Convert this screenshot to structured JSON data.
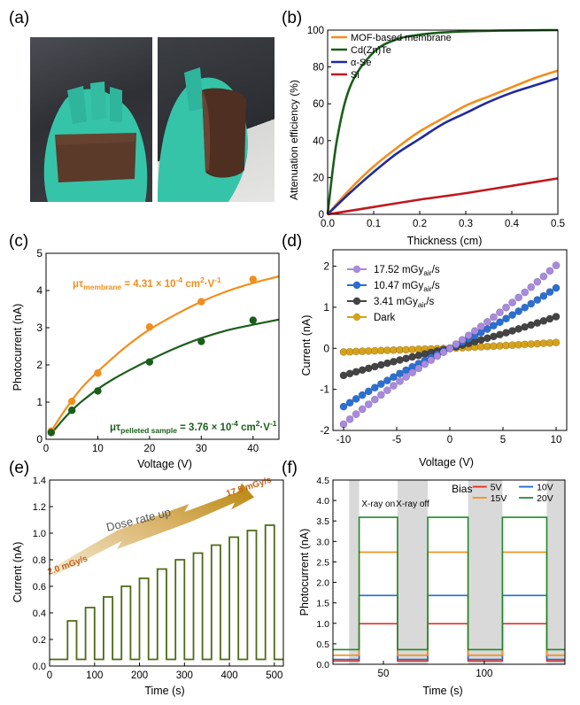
{
  "panels": {
    "a": {
      "label": "(a)"
    },
    "b": {
      "label": "(b)"
    },
    "c": {
      "label": "(c)"
    },
    "d": {
      "label": "(d)"
    },
    "e": {
      "label": "(e)"
    },
    "f": {
      "label": "(f)"
    }
  },
  "chart_data": [
    {
      "id": "b",
      "type": "line",
      "xlabel": "Thickness (cm)",
      "ylabel": "Attenuation efficiency (%)",
      "xlim": [
        0,
        0.5
      ],
      "ylim": [
        0,
        100
      ],
      "xticks": [
        "0.0",
        "0.1",
        "0.2",
        "0.3",
        "0.4",
        "0.5"
      ],
      "yticks": [
        "0",
        "20",
        "40",
        "60",
        "80",
        "100"
      ],
      "legend_position": "top-left",
      "series": [
        {
          "name": "MOF-based membrane",
          "color": "#f28e1c",
          "x": [
            0,
            0.05,
            0.1,
            0.15,
            0.2,
            0.25,
            0.3,
            0.35,
            0.4,
            0.45,
            0.5
          ],
          "y": [
            0,
            14,
            26,
            36,
            45,
            52,
            59,
            64,
            69,
            74,
            78
          ]
        },
        {
          "name": "Cd(Zn)Te",
          "color": "#1a5e1a",
          "x": [
            0,
            0.02,
            0.05,
            0.1,
            0.15,
            0.2,
            0.25,
            0.3,
            0.35,
            0.4,
            0.45,
            0.5
          ],
          "y": [
            0,
            40,
            70,
            88,
            95,
            97.5,
            98.7,
            99.3,
            99.6,
            99.8,
            99.9,
            100
          ]
        },
        {
          "name": "α-Se",
          "color": "#1f2a9e",
          "x": [
            0,
            0.05,
            0.1,
            0.15,
            0.2,
            0.25,
            0.3,
            0.35,
            0.4,
            0.45,
            0.5
          ],
          "y": [
            0,
            12,
            23,
            33,
            41,
            49,
            55,
            61,
            66,
            70,
            74
          ]
        },
        {
          "name": "Si",
          "color": "#c0191f",
          "x": [
            0,
            0.1,
            0.2,
            0.3,
            0.4,
            0.5
          ],
          "y": [
            0,
            4,
            8,
            11.5,
            15.5,
            19.5
          ]
        }
      ]
    },
    {
      "id": "c",
      "type": "scatter",
      "xlabel": "Voltage (V)",
      "ylabel": "Photocurrent (nA)",
      "xlim": [
        0,
        45
      ],
      "ylim": [
        0,
        5
      ],
      "xticks": [
        "0",
        "10",
        "20",
        "30",
        "40"
      ],
      "yticks": [
        "0",
        "1",
        "2",
        "3",
        "4",
        "5"
      ],
      "annotations": [
        {
          "prefix": "μτ",
          "sub": "membrane",
          "rest": " = 4.31 × 10",
          "sup": "-4",
          "unit": " cm",
          "unit_sup": "2",
          "unit_rest": "·V",
          "unit_sup2": "-1",
          "color": "#f28e1c"
        },
        {
          "prefix": "μτ",
          "sub": "pelleted sample",
          "rest": " = 3.76 × 10",
          "sup": "-4",
          "unit": " cm",
          "unit_sup": "2",
          "unit_rest": "·V",
          "unit_sup2": "-1",
          "color": "#1a5e1a"
        }
      ],
      "series": [
        {
          "name": "membrane",
          "color": "#f28e1c",
          "x": [
            1,
            5,
            10,
            20,
            30,
            40
          ],
          "y": [
            0.22,
            1.02,
            1.78,
            3.02,
            3.7,
            4.3
          ],
          "fit_x": [
            1,
            3,
            5,
            7,
            10,
            13,
            16,
            20,
            25,
            30,
            35,
            40,
            45
          ],
          "fit_y": [
            0.22,
            0.65,
            1.05,
            1.4,
            1.82,
            2.2,
            2.55,
            2.95,
            3.35,
            3.7,
            3.98,
            4.2,
            4.38
          ]
        },
        {
          "name": "pelleted sample",
          "color": "#1a5e1a",
          "x": [
            1,
            5,
            10,
            20,
            30,
            40
          ],
          "y": [
            0.18,
            0.78,
            1.3,
            2.08,
            2.63,
            3.2
          ],
          "fit_x": [
            1,
            3,
            5,
            7,
            10,
            13,
            16,
            20,
            25,
            30,
            35,
            40,
            45
          ],
          "fit_y": [
            0.15,
            0.48,
            0.78,
            1.03,
            1.35,
            1.62,
            1.85,
            2.13,
            2.45,
            2.72,
            2.93,
            3.08,
            3.22
          ]
        }
      ]
    },
    {
      "id": "d",
      "type": "line",
      "xlabel": "Voltage (V)",
      "ylabel": "Current (nA)",
      "xlim": [
        -11,
        11
      ],
      "ylim": [
        -2,
        2.4
      ],
      "xticks": [
        "-10",
        "-5",
        "0",
        "5",
        "10"
      ],
      "yticks": [
        "-2",
        "-1",
        "0",
        "1",
        "2"
      ],
      "legend_position": "top-left",
      "series": [
        {
          "name": "17.52 mGy",
          "sub": "air",
          "suffix": "/s",
          "color": "#a98adf",
          "x_min": -10,
          "x_max": 10,
          "y_min": -1.85,
          "y_max": 2.02
        },
        {
          "name": "10.47 mGy",
          "sub": "air",
          "suffix": "/s",
          "color": "#2a6fd4",
          "x_min": -10,
          "x_max": 10,
          "y_min": -1.42,
          "y_max": 1.47
        },
        {
          "name": "3.41 mGy",
          "sub": "air",
          "suffix": "/s",
          "color": "#444444",
          "x_min": -10,
          "x_max": 10,
          "y_min": -0.66,
          "y_max": 0.77
        },
        {
          "name": "Dark",
          "sub": "",
          "suffix": "",
          "color": "#d6a21a",
          "x_min": -10,
          "x_max": 10,
          "y_min": -0.09,
          "y_max": 0.14
        }
      ]
    },
    {
      "id": "e",
      "type": "line",
      "xlabel": "Time (s)",
      "ylabel": "Current (nA)",
      "xlim": [
        0,
        520
      ],
      "ylim": [
        0,
        1.4
      ],
      "xticks": [
        "0",
        "100",
        "200",
        "300",
        "400",
        "500"
      ],
      "yticks": [
        "0.0",
        "0.2",
        "0.4",
        "0.6",
        "0.8",
        "1.0",
        "1.2",
        "1.4"
      ],
      "baseline": 0.05,
      "pulse_width": 20,
      "pulse_starts": [
        40,
        80,
        120,
        160,
        200,
        240,
        280,
        320,
        360,
        400,
        440,
        480
      ],
      "pulse_values": [
        0.34,
        0.44,
        0.52,
        0.6,
        0.66,
        0.73,
        0.8,
        0.85,
        0.91,
        0.97,
        1.02,
        1.06
      ],
      "annotations": {
        "arrow_text": "Dose rate up",
        "start_label": "2.0 mGy/s",
        "end_label": "17.5 mGy/s"
      },
      "color": "#4c6b16"
    },
    {
      "id": "f",
      "type": "line",
      "xlabel": "Time (s)",
      "ylabel": "Photocurrent (nA)",
      "xlim": [
        25,
        140
      ],
      "ylim": [
        0,
        4.5
      ],
      "xticks": [
        "50",
        "100"
      ],
      "yticks": [
        "0.0",
        "0.5",
        "1.0",
        "1.5",
        "2.0",
        "2.5",
        "3.0",
        "3.5",
        "4.0",
        "4.5"
      ],
      "shaded_regions": [
        [
          33,
          38
        ],
        [
          57,
          72
        ],
        [
          92,
          109
        ],
        [
          131,
          140
        ]
      ],
      "annotations": {
        "on_label": "X-ray on",
        "off_label": "X-ray off",
        "bias_title": "Bias"
      },
      "on_intervals": [
        [
          38,
          57
        ],
        [
          72,
          92
        ],
        [
          109,
          131
        ]
      ],
      "series": [
        {
          "name": "5V",
          "color": "#e0302a",
          "off": 0.08,
          "on": 0.99
        },
        {
          "name": "10V",
          "color": "#1f6fd4",
          "off": 0.12,
          "on": 1.68
        },
        {
          "name": "15V",
          "color": "#f28e1c",
          "off": 0.22,
          "on": 2.74
        },
        {
          "name": "20V",
          "color": "#1f8a2a",
          "off": 0.36,
          "on": 3.59
        }
      ]
    }
  ]
}
